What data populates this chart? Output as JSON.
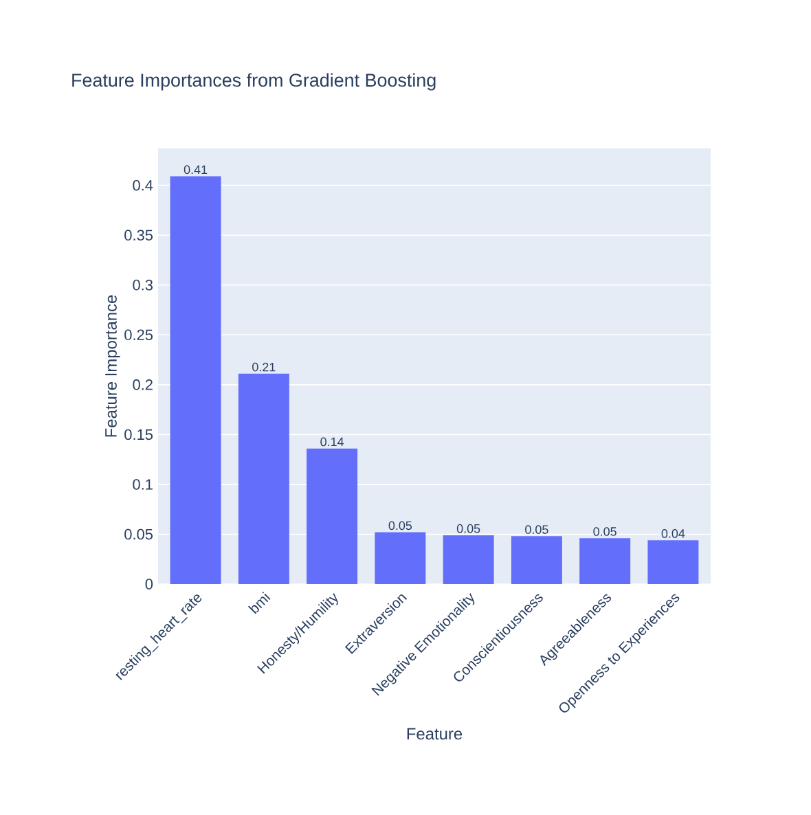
{
  "chart_data": {
    "type": "bar",
    "title": "Feature Importances from Gradient Boosting",
    "xlabel": "Feature",
    "ylabel": "Feature Importance",
    "categories": [
      "resting_heart_rate",
      "bmi",
      "Honesty/Humility",
      "Extraversion",
      "Negative Emotionality",
      "Conscientiousness",
      "Agreeableness",
      "Openness to Experiences"
    ],
    "values": [
      0.409,
      0.211,
      0.136,
      0.052,
      0.049,
      0.048,
      0.046,
      0.044
    ],
    "value_labels": [
      "0.41",
      "0.21",
      "0.14",
      "0.05",
      "0.05",
      "0.05",
      "0.05",
      "0.04"
    ],
    "color": "#636efa",
    "ylim": [
      0,
      0.437
    ],
    "yticks": [
      0,
      0.05,
      0.1,
      0.15,
      0.2,
      0.25,
      0.3,
      0.35,
      0.4
    ],
    "grid": "y"
  }
}
